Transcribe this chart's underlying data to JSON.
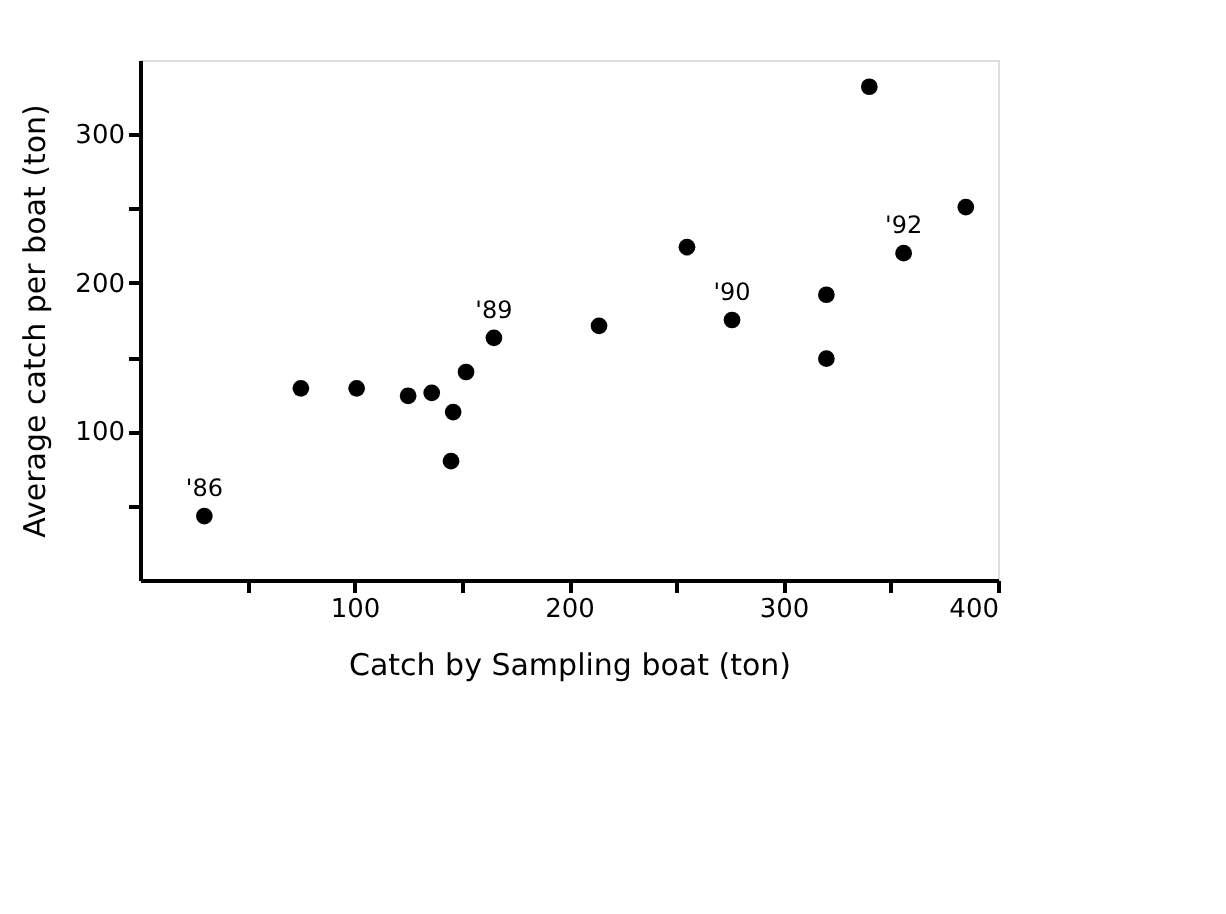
{
  "chart_data": {
    "type": "scatter",
    "xlabel": "Catch by Sampling boat (ton)",
    "ylabel": "Average catch per boat (ton)",
    "x": [
      30,
      75,
      101,
      125,
      136,
      146,
      145,
      152,
      165,
      214,
      255,
      276,
      320,
      320,
      340,
      356,
      385
    ],
    "series": [
      {
        "color": "#000000",
        "values": [
          43,
          129,
          129,
          124,
          126,
          113,
          80,
          140,
          163,
          171,
          224,
          175,
          192,
          149,
          332,
          220,
          251
        ]
      }
    ],
    "xlim": [
      0,
      400
    ],
    "ylim": [
      0,
      350
    ],
    "xticks": [
      {
        "value": 50,
        "label": null
      },
      100,
      {
        "value": 150,
        "label": null
      },
      200,
      {
        "value": 250,
        "label": null
      },
      300,
      {
        "value": 350,
        "label": null
      },
      400
    ],
    "yticks": [
      {
        "value": 50,
        "label": null
      },
      100,
      {
        "value": 150,
        "label": null
      },
      200,
      {
        "value": 250,
        "label": null
      },
      300
    ],
    "annotations": [
      {
        "text": "'86",
        "x": 30,
        "y": 43
      },
      {
        "text": "'89",
        "x": 165,
        "y": 163
      },
      {
        "text": "'90",
        "x": 276,
        "y": 175
      },
      {
        "text": "'92",
        "x": 356,
        "y": 220
      }
    ],
    "marker": "circle",
    "grid": false
  }
}
